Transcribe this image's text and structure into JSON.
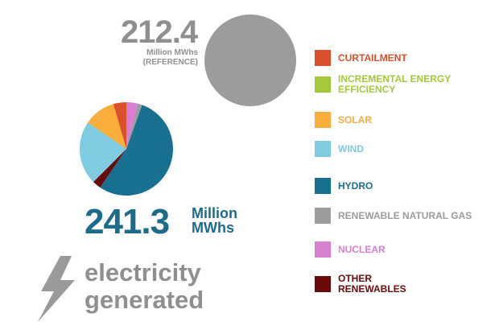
{
  "reference": {
    "value": "212.4",
    "unit": "Million MWhs (REFERENCE)"
  },
  "total": {
    "value": "241.3",
    "unit": "Million MWhs"
  },
  "caption": "electricity generated",
  "chart_data": {
    "type": "pie",
    "title": "electricity generated",
    "total_million_mwh": 241.3,
    "reference_million_mwh": 212.4,
    "series": [
      {
        "name": "NUCLEAR",
        "value": 4,
        "color": "#d97fcf"
      },
      {
        "name": "RENEWABLE NATURAL GAS",
        "value": 1.5,
        "color": "#9c9c9c"
      },
      {
        "name": "HYDRO",
        "value": 54,
        "color": "#17708f"
      },
      {
        "name": "OTHER RENEWABLES",
        "value": 3,
        "color": "#6b0a0a"
      },
      {
        "name": "WIND",
        "value": 22,
        "color": "#7ecbe2"
      },
      {
        "name": "SOLAR",
        "value": 11,
        "color": "#f9ad3b"
      },
      {
        "name": "CURTAILMENT",
        "value": 4.5,
        "color": "#d9502a"
      },
      {
        "name": "INCREMENTAL ENERGY EFFICIENCY",
        "value": 0,
        "color": "#a3c83a"
      }
    ],
    "legend": [
      {
        "label": "CURTAILMENT",
        "color": "#d9502a"
      },
      {
        "label": "INCREMENTAL ENERGY EFFICIENCY",
        "color": "#a3c83a"
      },
      {
        "label": "SOLAR",
        "color": "#f9ad3b"
      },
      {
        "label": "WIND",
        "color": "#7ecbe2"
      },
      {
        "label": "HYDRO",
        "color": "#17708f"
      },
      {
        "label": "RENEWABLE NATURAL GAS",
        "color": "#9c9c9c"
      },
      {
        "label": "NUCLEAR",
        "color": "#d97fcf"
      },
      {
        "label": "OTHER RENEWABLES",
        "color": "#6b0a0a"
      }
    ],
    "legend_placement": "right"
  }
}
